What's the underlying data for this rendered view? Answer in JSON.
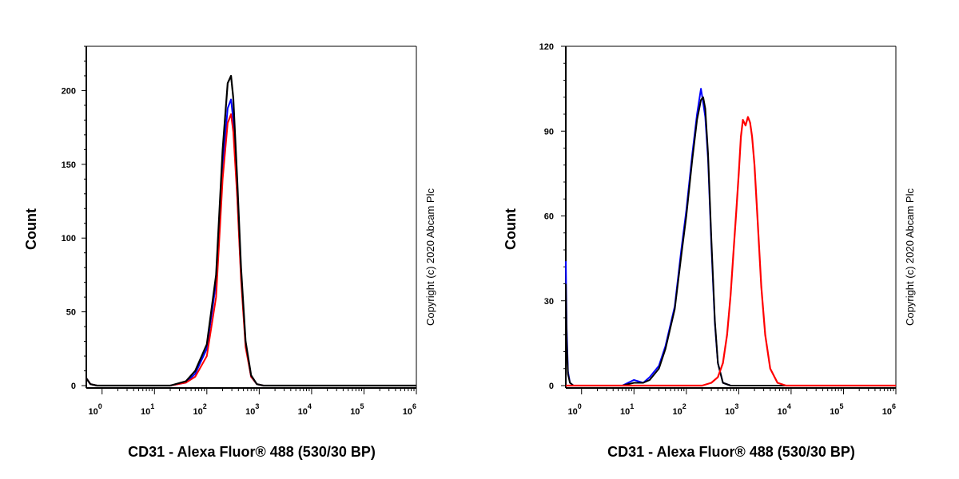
{
  "chart_data": [
    {
      "type": "line",
      "xlabel": "CD31 - Alexa Fluor® 488 (530/30 BP)",
      "ylabel": "Count",
      "x_scale": "log",
      "xlim": [
        0.5,
        1000000
      ],
      "ylim": [
        0,
        230
      ],
      "x_ticks": [
        1,
        10,
        100,
        1000,
        10000,
        100000,
        1000000
      ],
      "x_tick_labels": [
        {
          "base": "10",
          "exp": "0"
        },
        {
          "base": "10",
          "exp": "1"
        },
        {
          "base": "10",
          "exp": "2"
        },
        {
          "base": "10",
          "exp": "3"
        },
        {
          "base": "10",
          "exp": "4"
        },
        {
          "base": "10",
          "exp": "5"
        },
        {
          "base": "10",
          "exp": "6"
        }
      ],
      "y_ticks": [
        0,
        50,
        100,
        150,
        200
      ],
      "y_tick_labels": [
        "0",
        "50",
        "100",
        "150",
        "200"
      ],
      "annotation": "Copyright (c) 2020 Abcam Plc",
      "series": [
        {
          "color": "#0000ff",
          "x": [
            0.5,
            0.6,
            0.8,
            1,
            10,
            20,
            40,
            60,
            100,
            150,
            200,
            250,
            290,
            320,
            380,
            450,
            550,
            700,
            900,
            1200,
            2000,
            1000000
          ],
          "y": [
            5,
            1,
            0,
            0,
            0,
            0,
            2,
            8,
            25,
            70,
            150,
            188,
            194,
            180,
            130,
            75,
            28,
            6,
            1,
            0,
            0,
            0
          ]
        },
        {
          "color": "#ff0000",
          "x": [
            0.5,
            0.6,
            0.8,
            1,
            10,
            20,
            40,
            60,
            100,
            150,
            200,
            250,
            290,
            320,
            380,
            450,
            550,
            700,
            900,
            1200,
            2000,
            1000000
          ],
          "y": [
            5,
            1,
            0,
            0,
            0,
            0,
            2,
            6,
            20,
            60,
            140,
            178,
            184,
            172,
            128,
            72,
            26,
            6,
            1,
            0,
            0,
            0
          ]
        },
        {
          "color": "#000000",
          "x": [
            0.5,
            0.6,
            0.8,
            1,
            10,
            20,
            40,
            60,
            100,
            150,
            200,
            250,
            290,
            320,
            380,
            450,
            550,
            700,
            900,
            1200,
            2000,
            1000000
          ],
          "y": [
            5,
            1,
            0,
            0,
            0,
            0,
            3,
            10,
            28,
            75,
            160,
            205,
            210,
            195,
            140,
            80,
            30,
            7,
            1,
            0,
            0,
            0
          ]
        }
      ]
    },
    {
      "type": "line",
      "xlabel": "CD31 - Alexa Fluor® 488 (530/30 BP)",
      "ylabel": "Count",
      "x_scale": "log",
      "xlim": [
        0.5,
        1000000
      ],
      "ylim": [
        0,
        120
      ],
      "x_ticks": [
        1,
        10,
        100,
        1000,
        10000,
        100000,
        1000000
      ],
      "x_tick_labels": [
        {
          "base": "10",
          "exp": "0"
        },
        {
          "base": "10",
          "exp": "1"
        },
        {
          "base": "10",
          "exp": "2"
        },
        {
          "base": "10",
          "exp": "3"
        },
        {
          "base": "10",
          "exp": "4"
        },
        {
          "base": "10",
          "exp": "5"
        },
        {
          "base": "10",
          "exp": "6"
        }
      ],
      "y_ticks": [
        0,
        30,
        60,
        90,
        120
      ],
      "y_tick_labels": [
        "0",
        "30",
        "60",
        "90",
        "120"
      ],
      "annotation": "Copyright (c) 2020 Abcam Plc",
      "series": [
        {
          "color": "#0000ff",
          "x": [
            0.5,
            0.52,
            0.55,
            0.6,
            0.7,
            1,
            3,
            6,
            10,
            15,
            20,
            30,
            40,
            60,
            80,
            100,
            130,
            160,
            190,
            210,
            230,
            260,
            300,
            350,
            400,
            500,
            700,
            1000,
            1000000
          ],
          "y": [
            44,
            20,
            5,
            1,
            0,
            0,
            0,
            0,
            2,
            1,
            3,
            7,
            14,
            28,
            48,
            62,
            82,
            96,
            105,
            100,
            95,
            80,
            50,
            22,
            8,
            1,
            0,
            0,
            0
          ]
        },
        {
          "color": "#000000",
          "x": [
            0.5,
            0.52,
            0.55,
            0.6,
            0.7,
            1,
            3,
            6,
            10,
            15,
            20,
            30,
            40,
            60,
            80,
            100,
            130,
            160,
            190,
            210,
            230,
            260,
            300,
            350,
            400,
            500,
            700,
            1000,
            1000000
          ],
          "y": [
            36,
            16,
            4,
            1,
            0,
            0,
            0,
            0,
            1,
            1,
            2,
            6,
            13,
            27,
            46,
            60,
            80,
            94,
            101,
            102,
            98,
            82,
            52,
            23,
            8,
            1,
            0,
            0,
            0
          ]
        },
        {
          "color": "#ff0000",
          "x": [
            0.5,
            100,
            200,
            300,
            400,
            500,
            600,
            700,
            800,
            900,
            1000,
            1100,
            1200,
            1350,
            1500,
            1650,
            1800,
            2000,
            2300,
            2700,
            3200,
            4000,
            5500,
            8000,
            12000,
            1000000
          ],
          "y": [
            0,
            0,
            0,
            1,
            3,
            8,
            18,
            32,
            48,
            62,
            75,
            88,
            94,
            92,
            95,
            93,
            88,
            78,
            58,
            35,
            18,
            6,
            1,
            0,
            0,
            0
          ]
        }
      ]
    }
  ]
}
